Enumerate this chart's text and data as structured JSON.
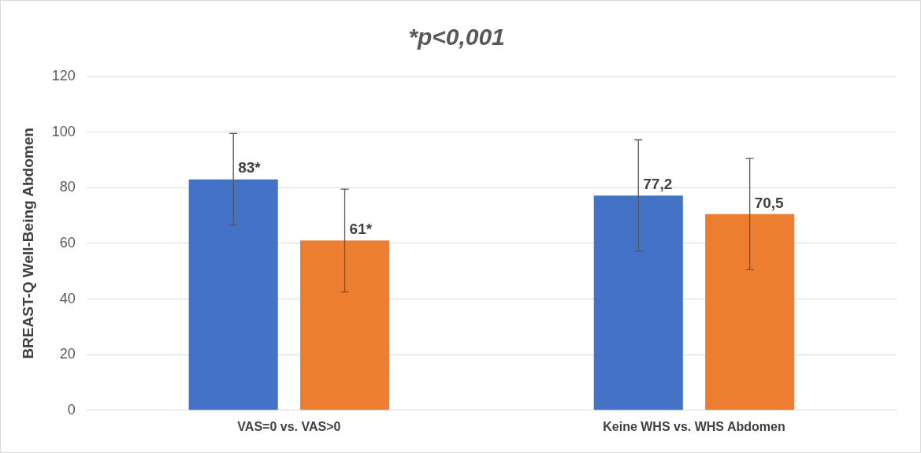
{
  "chart_data": {
    "type": "bar",
    "title": "*p<0,001",
    "ylabel": "BREAST-Q Well-Being Abdomen",
    "categories": [
      "VAS=0 vs. VAS>0",
      "Keine WHS vs. WHS Abdomen"
    ],
    "series": [
      {
        "color": "#4472c4",
        "values": [
          83,
          77.2
        ],
        "errors": [
          16.5,
          20
        ],
        "value_labels": [
          "83*",
          "77,2"
        ]
      },
      {
        "color": "#ed7d31",
        "values": [
          61,
          70.5
        ],
        "errors": [
          18.5,
          20
        ],
        "value_labels": [
          "61*",
          "70,5"
        ]
      }
    ],
    "ylim": [
      0,
      120
    ],
    "yticks": [
      0,
      20,
      40,
      60,
      80,
      100,
      120
    ],
    "grid": "y",
    "legend": false
  }
}
